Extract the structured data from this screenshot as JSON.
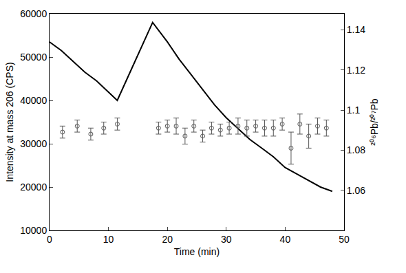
{
  "chart_data": {
    "type": "line",
    "xlabel": "Time (min)",
    "ylabel": "Intensity at mass 206 (CPS)",
    "y2label": "²⁰⁶Pb/²⁰⁷Pb",
    "xlim": [
      0,
      50
    ],
    "xticks": [
      0,
      10,
      20,
      30,
      40,
      50
    ],
    "ylim": [
      10000,
      60000
    ],
    "yticks": [
      10000,
      20000,
      30000,
      40000,
      50000,
      60000
    ],
    "y2lim": [
      1.04,
      1.148
    ],
    "y2ticks": [
      1.06,
      1.08,
      1.1,
      1.12,
      1.14
    ],
    "grid": false,
    "series": [
      {
        "type": "line",
        "color": "#000000",
        "line_style": "solid",
        "x": [
          0,
          2,
          4,
          6,
          8,
          10,
          11.5,
          14,
          17.5,
          20,
          22,
          24,
          26,
          28,
          30,
          32,
          34,
          36,
          38,
          40,
          42,
          44,
          46,
          48
        ],
        "values": [
          53500,
          51500,
          49000,
          46500,
          44500,
          42000,
          40000,
          47500,
          58000,
          53500,
          49500,
          46000,
          42500,
          39000,
          36000,
          33500,
          31000,
          29000,
          27000,
          24500,
          23000,
          21500,
          20000,
          19000
        ]
      },
      {
        "type": "scatter",
        "axis": "y2",
        "color": "#555555",
        "marker": "circle-open",
        "x": [
          2.2,
          4.7,
          7,
          9.2,
          11.5,
          18.5,
          20,
          21.5,
          23,
          24.5,
          26,
          27.5,
          29,
          30.5,
          32,
          33.5,
          35,
          36.5,
          38,
          39.5,
          41,
          42.5,
          44,
          45.5,
          47
        ],
        "values": [
          1.089,
          1.092,
          1.088,
          1.091,
          1.093,
          1.091,
          1.092,
          1.092,
          1.087,
          1.092,
          1.087,
          1.091,
          1.09,
          1.091,
          1.092,
          1.091,
          1.092,
          1.091,
          1.091,
          1.093,
          1.081,
          1.093,
          1.087,
          1.092,
          1.091
        ],
        "error": [
          0.003,
          0.003,
          0.003,
          0.003,
          0.003,
          0.003,
          0.003,
          0.004,
          0.004,
          0.003,
          0.003,
          0.003,
          0.003,
          0.003,
          0.004,
          0.004,
          0.003,
          0.004,
          0.004,
          0.003,
          0.008,
          0.005,
          0.006,
          0.004,
          0.004
        ]
      }
    ]
  }
}
